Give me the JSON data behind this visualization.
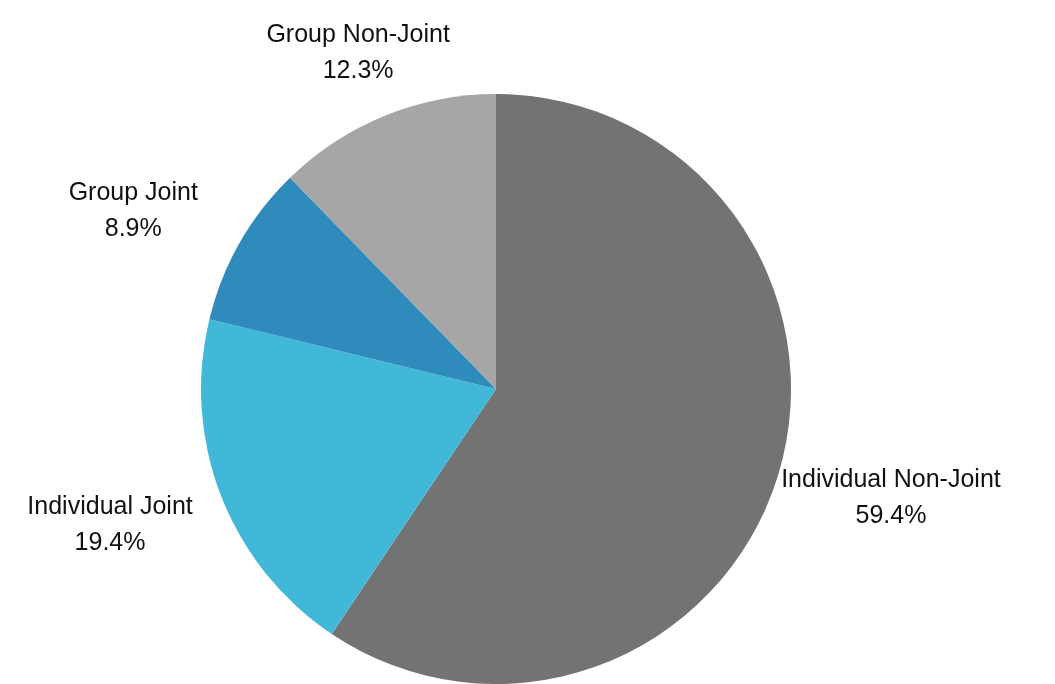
{
  "chart_data": {
    "type": "pie",
    "categories": [
      "Individual Non-Joint",
      "Individual Joint",
      "Group Joint",
      "Group Non-Joint"
    ],
    "values": [
      59.4,
      19.4,
      8.9,
      12.3
    ],
    "value_labels": [
      "59.4%",
      "19.4%",
      "8.9%",
      "12.3%"
    ],
    "colors": [
      "#737373",
      "#41b8d8",
      "#2e8bbb",
      "#a6a6a6"
    ],
    "legend": false
  }
}
